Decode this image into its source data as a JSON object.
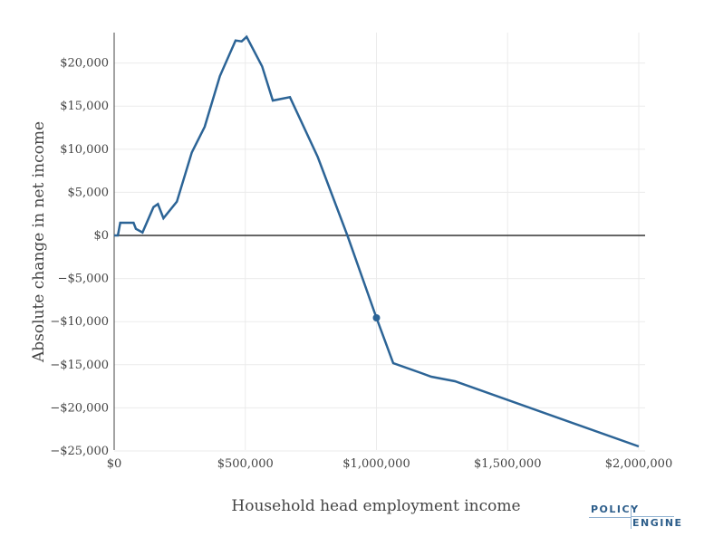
{
  "chart_data": {
    "type": "line",
    "title": "",
    "xlabel": "Household head employment income",
    "ylabel": "Absolute change in net income",
    "xlim": [
      0,
      2000000
    ],
    "ylim": [
      -25000,
      23500
    ],
    "x_ticks": [
      0,
      500000,
      1000000,
      1500000,
      2000000
    ],
    "x_tick_labels": [
      "$0",
      "$500,000",
      "$1,000,000",
      "$1,500,000",
      "$2,000,000"
    ],
    "y_ticks": [
      -25000,
      -20000,
      -15000,
      -10000,
      -5000,
      0,
      5000,
      10000,
      15000,
      20000
    ],
    "y_tick_labels": [
      "−$25,000",
      "−$20,000",
      "−$15,000",
      "−$10,000",
      "−$5,000",
      "$0",
      "$5,000",
      "$10,000",
      "$15,000",
      "$20,000"
    ],
    "grid": true,
    "line_color": "#2c6496",
    "series": [
      {
        "x": [
          0,
          14000,
          23000,
          74000,
          83000,
          108000,
          150000,
          167000,
          188000,
          239000,
          296000,
          345000,
          403000,
          463000,
          486000,
          505000,
          564000,
          605000,
          670000,
          776000,
          889000,
          1000000,
          1064000,
          1171000,
          1209000,
          1299000,
          2000000
        ],
        "y": [
          0,
          0,
          1470,
          1470,
          770,
          350,
          3290,
          3640,
          2000,
          3920,
          9630,
          12600,
          18490,
          22620,
          22510,
          23040,
          19610,
          15650,
          16040,
          9100,
          0,
          -9560,
          -14810,
          -15970,
          -16390,
          -16910,
          -24470
        ]
      }
    ],
    "highlight_point": {
      "x": 1000000,
      "y": -9560
    }
  },
  "logo": {
    "line1": "POLICY",
    "line2": "ENGINE"
  }
}
